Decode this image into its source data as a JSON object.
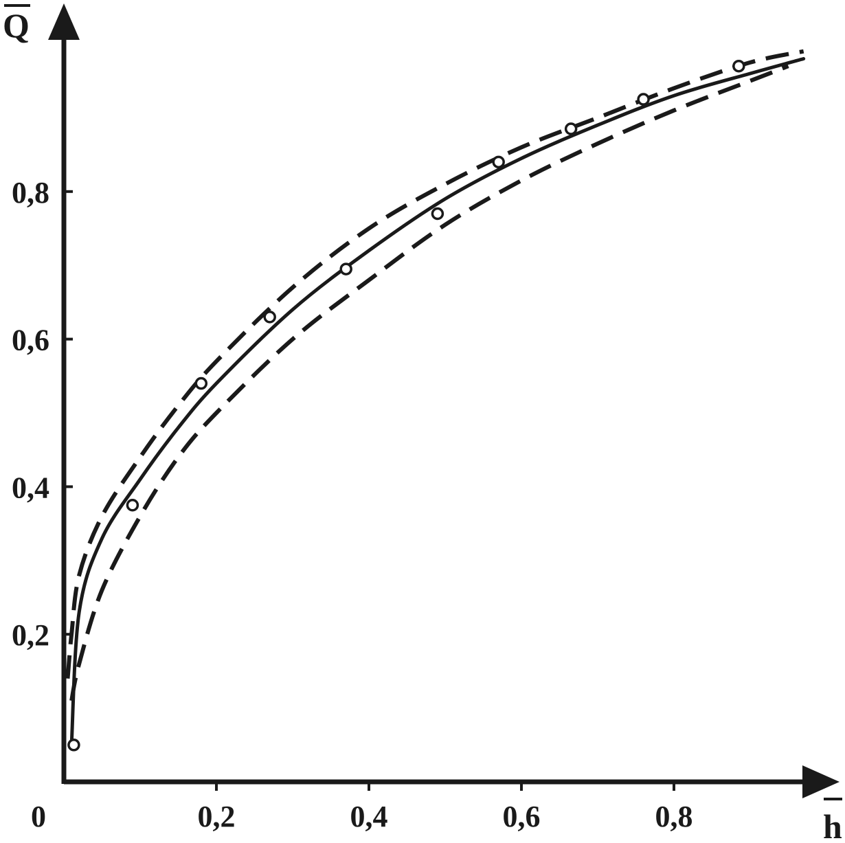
{
  "chart_data": {
    "type": "line",
    "title": "",
    "origin_label": "0",
    "xlabel": "h",
    "ylabel": "Q",
    "xlabel_overline": true,
    "ylabel_overline": true,
    "xlim": [
      0,
      1.0
    ],
    "ylim": [
      0,
      1.0
    ],
    "grid": false,
    "x_ticks": [
      {
        "value": 0.2,
        "label": "0,2"
      },
      {
        "value": 0.4,
        "label": "0,4"
      },
      {
        "value": 0.6,
        "label": "0,6"
      },
      {
        "value": 0.8,
        "label": "0,8"
      }
    ],
    "y_ticks": [
      {
        "value": 0.2,
        "label": "0,2"
      },
      {
        "value": 0.4,
        "label": "0,4"
      },
      {
        "value": 0.6,
        "label": "0,6"
      },
      {
        "value": 0.8,
        "label": "0,8"
      }
    ],
    "series": [
      {
        "style": "solid",
        "color": "#1a1a1a",
        "x": [
          0.01,
          0.02,
          0.05,
          0.1,
          0.15,
          0.2,
          0.3,
          0.4,
          0.5,
          0.6,
          0.7,
          0.8,
          0.9,
          0.97
        ],
        "y": [
          0.05,
          0.23,
          0.33,
          0.41,
          0.48,
          0.54,
          0.64,
          0.72,
          0.79,
          0.845,
          0.89,
          0.93,
          0.96,
          0.98
        ]
      },
      {
        "style": "dashed",
        "color": "#1a1a1a",
        "x": [
          0.005,
          0.01,
          0.02,
          0.05,
          0.1,
          0.15,
          0.2,
          0.3,
          0.4,
          0.5,
          0.6,
          0.7,
          0.8,
          0.9,
          0.97
        ],
        "y": [
          0.14,
          0.2,
          0.28,
          0.36,
          0.44,
          0.51,
          0.57,
          0.67,
          0.75,
          0.81,
          0.86,
          0.9,
          0.94,
          0.975,
          0.99
        ]
      },
      {
        "style": "dashed",
        "color": "#1a1a1a",
        "x": [
          0.01,
          0.02,
          0.05,
          0.1,
          0.15,
          0.2,
          0.3,
          0.4,
          0.5,
          0.6,
          0.7,
          0.8,
          0.9,
          0.95
        ],
        "y": [
          0.11,
          0.16,
          0.26,
          0.36,
          0.44,
          0.5,
          0.6,
          0.68,
          0.755,
          0.815,
          0.865,
          0.91,
          0.95,
          0.97
        ]
      },
      {
        "style": "markers",
        "color": "#1a1a1a",
        "x": [
          0.013,
          0.09,
          0.18,
          0.27,
          0.37,
          0.49,
          0.57,
          0.665,
          0.76,
          0.885
        ],
        "y": [
          0.05,
          0.375,
          0.54,
          0.63,
          0.695,
          0.77,
          0.84,
          0.885,
          0.925,
          0.97
        ]
      }
    ]
  }
}
